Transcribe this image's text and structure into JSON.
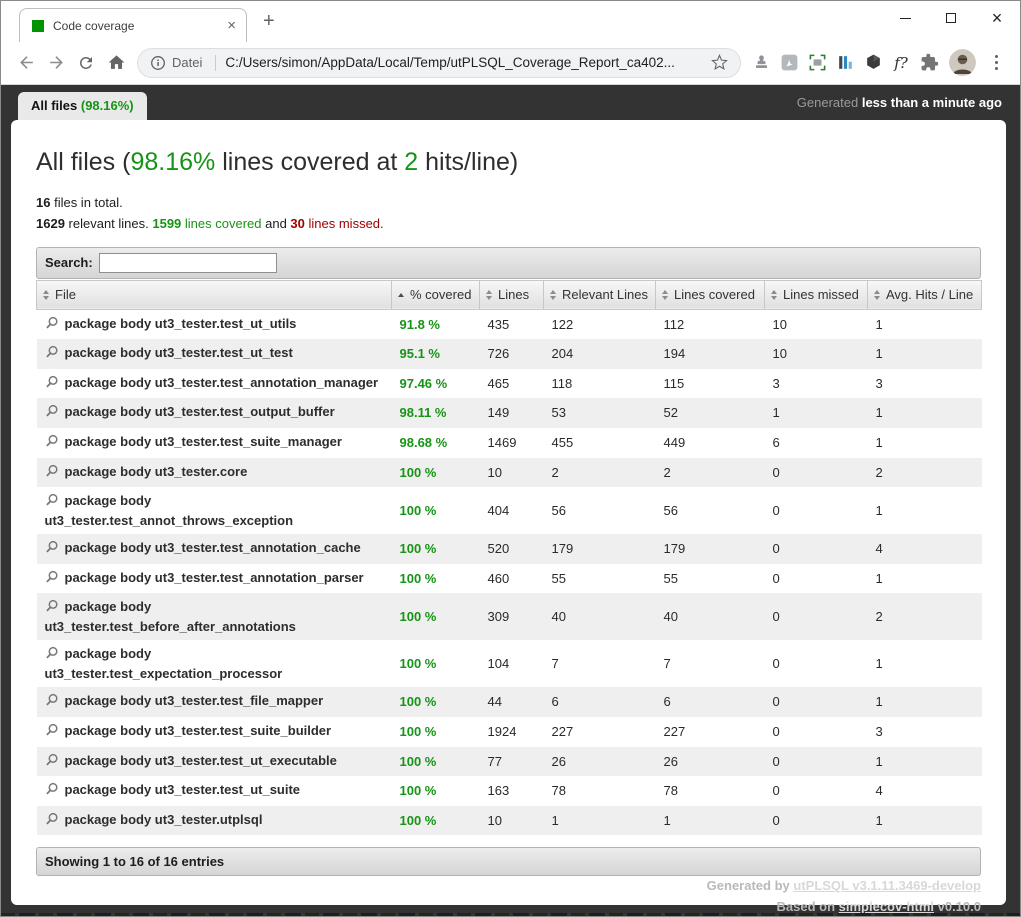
{
  "colors": {
    "green": "#169416",
    "red": "#a40000",
    "dark_bg": "#333333"
  },
  "icons": {
    "favicon": "green-square",
    "tab_close": "×",
    "new_tab": "+",
    "minimize": "minus-bar",
    "maximize": "square-outline",
    "close_window": "×",
    "back": "left-arrow",
    "forward": "right-arrow",
    "reload": "circular-arrow",
    "home": "house",
    "page_info": "i-in-circle",
    "bookmark_star": "star-outline",
    "magnifier": "magnifying-glass",
    "sort_both": "up-down-triangles",
    "sort_asc": "up-triangle",
    "menu": "vertical-three-dots"
  },
  "browser": {
    "tab_title": "Code coverage",
    "address": {
      "scheme_label": "Datei",
      "url": "C:/Users/simon/AppData/Local/Temp/utPLSQL_Coverage_Report_ca402..."
    }
  },
  "page_header": {
    "tab_label": "All files ",
    "tab_percent": "(98.16%)",
    "generated_prefix": "Generated ",
    "generated_time": "less than a minute ago"
  },
  "main": {
    "title": {
      "prefix": "All files (",
      "percent": "98.16%",
      "middle": " lines covered at ",
      "hits": "2",
      "suffix": " hits/line)"
    },
    "summary": {
      "files_count": "16",
      "files_label": " files in total.",
      "relevant_count": "1629",
      "relevant_label": " relevant lines. ",
      "covered_count": "1599",
      "covered_label": " lines covered",
      "and_text": " and ",
      "missed_count": "30",
      "missed_label": " lines missed."
    },
    "search_label": "Search:",
    "search_value": ""
  },
  "table": {
    "columns": [
      {
        "label": "File",
        "sort": "both"
      },
      {
        "label": "% covered",
        "sort": "asc"
      },
      {
        "label": "Lines",
        "sort": "both"
      },
      {
        "label": "Relevant Lines",
        "sort": "both"
      },
      {
        "label": "Lines covered",
        "sort": "both"
      },
      {
        "label": "Lines missed",
        "sort": "both"
      },
      {
        "label": "Avg. Hits / Line",
        "sort": "both"
      }
    ],
    "rows": [
      {
        "file": "package body ut3_tester.test_ut_utils",
        "percent": "91.8 %",
        "lines": "435",
        "relevant": "122",
        "covered": "112",
        "missed": "10",
        "avg_hits": "1"
      },
      {
        "file": "package body ut3_tester.test_ut_test",
        "percent": "95.1 %",
        "lines": "726",
        "relevant": "204",
        "covered": "194",
        "missed": "10",
        "avg_hits": "1"
      },
      {
        "file": "package body ut3_tester.test_annotation_manager",
        "percent": "97.46 %",
        "lines": "465",
        "relevant": "118",
        "covered": "115",
        "missed": "3",
        "avg_hits": "3"
      },
      {
        "file": "package body ut3_tester.test_output_buffer",
        "percent": "98.11 %",
        "lines": "149",
        "relevant": "53",
        "covered": "52",
        "missed": "1",
        "avg_hits": "1"
      },
      {
        "file": "package body ut3_tester.test_suite_manager",
        "percent": "98.68 %",
        "lines": "1469",
        "relevant": "455",
        "covered": "449",
        "missed": "6",
        "avg_hits": "1"
      },
      {
        "file": "package body ut3_tester.core",
        "percent": "100 %",
        "lines": "10",
        "relevant": "2",
        "covered": "2",
        "missed": "0",
        "avg_hits": "2"
      },
      {
        "file": "package body ut3_tester.test_annot_throws_exception",
        "percent": "100 %",
        "lines": "404",
        "relevant": "56",
        "covered": "56",
        "missed": "0",
        "avg_hits": "1"
      },
      {
        "file": "package body ut3_tester.test_annotation_cache",
        "percent": "100 %",
        "lines": "520",
        "relevant": "179",
        "covered": "179",
        "missed": "0",
        "avg_hits": "4"
      },
      {
        "file": "package body ut3_tester.test_annotation_parser",
        "percent": "100 %",
        "lines": "460",
        "relevant": "55",
        "covered": "55",
        "missed": "0",
        "avg_hits": "1"
      },
      {
        "file": "package body ut3_tester.test_before_after_annotations",
        "percent": "100 %",
        "lines": "309",
        "relevant": "40",
        "covered": "40",
        "missed": "0",
        "avg_hits": "2"
      },
      {
        "file": "package body ut3_tester.test_expectation_processor",
        "percent": "100 %",
        "lines": "104",
        "relevant": "7",
        "covered": "7",
        "missed": "0",
        "avg_hits": "1"
      },
      {
        "file": "package body ut3_tester.test_file_mapper",
        "percent": "100 %",
        "lines": "44",
        "relevant": "6",
        "covered": "6",
        "missed": "0",
        "avg_hits": "1"
      },
      {
        "file": "package body ut3_tester.test_suite_builder",
        "percent": "100 %",
        "lines": "1924",
        "relevant": "227",
        "covered": "227",
        "missed": "0",
        "avg_hits": "3"
      },
      {
        "file": "package body ut3_tester.test_ut_executable",
        "percent": "100 %",
        "lines": "77",
        "relevant": "26",
        "covered": "26",
        "missed": "0",
        "avg_hits": "1"
      },
      {
        "file": "package body ut3_tester.test_ut_suite",
        "percent": "100 %",
        "lines": "163",
        "relevant": "78",
        "covered": "78",
        "missed": "0",
        "avg_hits": "4"
      },
      {
        "file": "package body ut3_tester.utplsql",
        "percent": "100 %",
        "lines": "10",
        "relevant": "1",
        "covered": "1",
        "missed": "0",
        "avg_hits": "1"
      }
    ],
    "info": "Showing 1 to 16 of 16 entries"
  },
  "footer": {
    "generated_by": "Generated by ",
    "generator_link": "utPLSQL v3.1.11.3469-develop",
    "based_on": "Based on ",
    "based_link": "simplecov-html",
    "based_version": " v0.10.0"
  }
}
